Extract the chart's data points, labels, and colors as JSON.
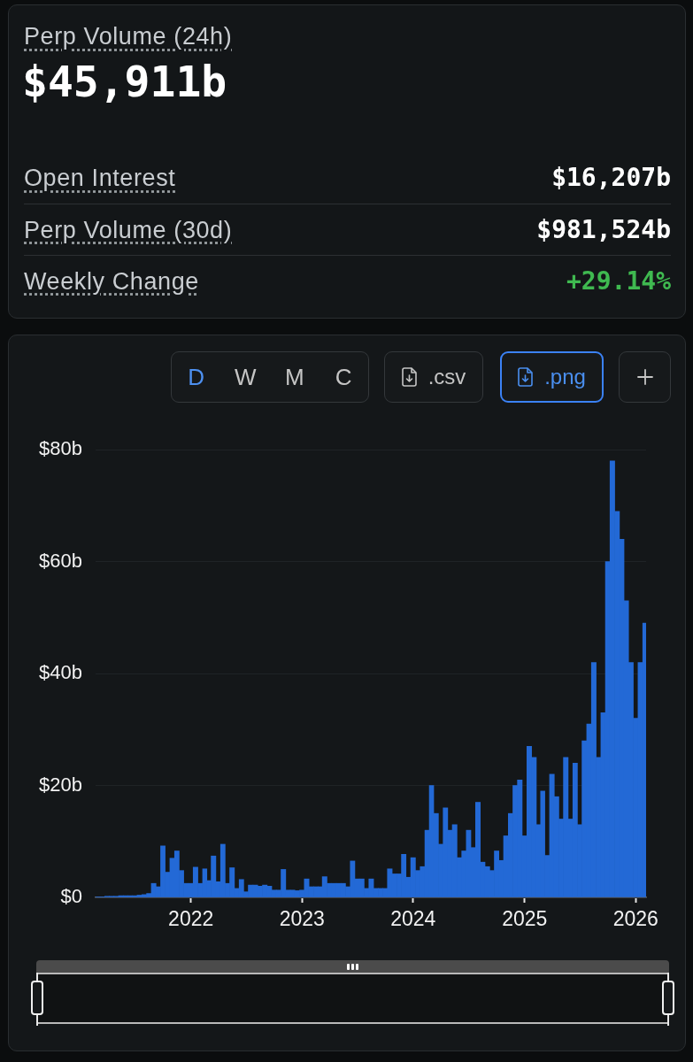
{
  "chart_data": [
    {
      "type": "other",
      "title": "Perp Volume (24h)",
      "subtitle": "$45,911b",
      "annotations": [
        "Open Interest",
        "$16,207b",
        "Perp Volume (30d)",
        "$981,524b",
        "Weekly Change",
        "+29.14%"
      ]
    },
    {
      "type": "bar",
      "color": "#2369d6",
      "grid": "y",
      "annotations": [
        "D",
        "W",
        "M",
        "C",
        ".csv",
        ".png"
      ],
      "xlim": [
        "2021-02-22",
        "2026-02-04"
      ],
      "xticks": [
        "2022",
        "2023",
        "2024",
        "2025",
        "2026"
      ],
      "ylim": [
        0,
        80
      ],
      "yticks": [
        {
          "value": 0,
          "label": "$0"
        },
        {
          "value": 20,
          "label": "$20b"
        },
        {
          "value": 40,
          "label": "$40b"
        },
        {
          "value": 60,
          "label": "$60b"
        },
        {
          "value": 80,
          "label": "$80b"
        }
      ],
      "x": [
        "2021-03-01",
        "2021-03-16",
        "2021-04-01",
        "2021-04-16",
        "2021-05-01",
        "2021-05-16",
        "2021-06-01",
        "2021-06-16",
        "2021-07-01",
        "2021-07-16",
        "2021-08-01",
        "2021-08-16",
        "2021-09-01",
        "2021-09-16",
        "2021-10-01",
        "2021-10-16",
        "2021-11-01",
        "2021-11-16",
        "2021-12-01",
        "2021-12-16",
        "2022-01-01",
        "2022-01-16",
        "2022-02-01",
        "2022-02-16",
        "2022-03-01",
        "2022-03-16",
        "2022-04-01",
        "2022-04-16",
        "2022-05-01",
        "2022-05-16",
        "2022-06-01",
        "2022-06-16",
        "2022-07-01",
        "2022-07-16",
        "2022-08-01",
        "2022-08-16",
        "2022-09-01",
        "2022-09-16",
        "2022-10-01",
        "2022-10-16",
        "2022-11-01",
        "2022-11-16",
        "2022-12-01",
        "2022-12-16",
        "2023-01-01",
        "2023-01-16",
        "2023-02-01",
        "2023-02-16",
        "2023-03-01",
        "2023-03-16",
        "2023-04-01",
        "2023-04-16",
        "2023-05-01",
        "2023-05-16",
        "2023-06-01",
        "2023-06-16",
        "2023-07-01",
        "2023-07-16",
        "2023-08-01",
        "2023-08-16",
        "2023-09-01",
        "2023-09-16",
        "2023-10-01",
        "2023-10-16",
        "2023-11-01",
        "2023-11-16",
        "2023-12-01",
        "2023-12-16",
        "2024-01-01",
        "2024-01-16",
        "2024-02-01",
        "2024-02-16",
        "2024-03-01",
        "2024-03-16",
        "2024-04-01",
        "2024-04-16",
        "2024-05-01",
        "2024-05-16",
        "2024-06-01",
        "2024-06-16",
        "2024-07-01",
        "2024-07-16",
        "2024-08-01",
        "2024-08-16",
        "2024-09-01",
        "2024-09-16",
        "2024-10-01",
        "2024-10-16",
        "2024-11-01",
        "2024-11-16",
        "2024-12-01",
        "2024-12-16",
        "2025-01-01",
        "2025-01-16",
        "2025-02-01",
        "2025-02-16",
        "2025-03-01",
        "2025-03-16",
        "2025-04-01",
        "2025-04-16",
        "2025-05-01",
        "2025-05-16",
        "2025-06-01",
        "2025-06-16",
        "2025-07-01",
        "2025-07-16",
        "2025-08-01",
        "2025-08-16",
        "2025-09-01",
        "2025-09-16",
        "2025-10-01",
        "2025-10-16",
        "2025-11-01",
        "2025-11-16",
        "2025-12-01",
        "2025-12-16",
        "2026-01-01",
        "2026-01-16",
        "2026-02-01"
      ],
      "values": [
        0.1,
        0.1,
        0.2,
        0.2,
        0.2,
        0.3,
        0.3,
        0.3,
        0.3,
        0.4,
        0.5,
        0.7,
        2.5,
        1.9,
        9.2,
        4.5,
        7,
        8.3,
        4.8,
        2.5,
        2.5,
        5.4,
        2.5,
        5.1,
        3,
        7.4,
        2.8,
        9.5,
        2.5,
        5.3,
        1.6,
        3.2,
        1,
        2.2,
        2.2,
        2,
        2.2,
        2,
        1.3,
        1.3,
        5,
        1.3,
        1.3,
        1.2,
        1.3,
        3.3,
        1.9,
        1.9,
        1.9,
        3.7,
        2.5,
        2.5,
        2.5,
        2.5,
        1.9,
        6.5,
        3.3,
        3.3,
        1.6,
        3.3,
        1.6,
        1.6,
        1.6,
        5.1,
        4.2,
        4.2,
        7.7,
        3.6,
        7.1,
        4.8,
        5.5,
        12,
        20,
        15,
        9.5,
        16,
        12,
        13,
        7.1,
        8.3,
        12,
        8.9,
        17,
        6.3,
        5.5,
        4.8,
        8.3,
        6.6,
        11,
        15,
        20,
        21,
        11,
        27,
        25,
        13,
        19,
        7.5,
        22,
        18,
        14,
        25,
        14,
        24,
        13,
        28,
        31,
        42,
        25,
        33,
        60,
        78,
        69,
        64,
        53,
        42,
        32,
        42,
        49
      ]
    }
  ]
}
